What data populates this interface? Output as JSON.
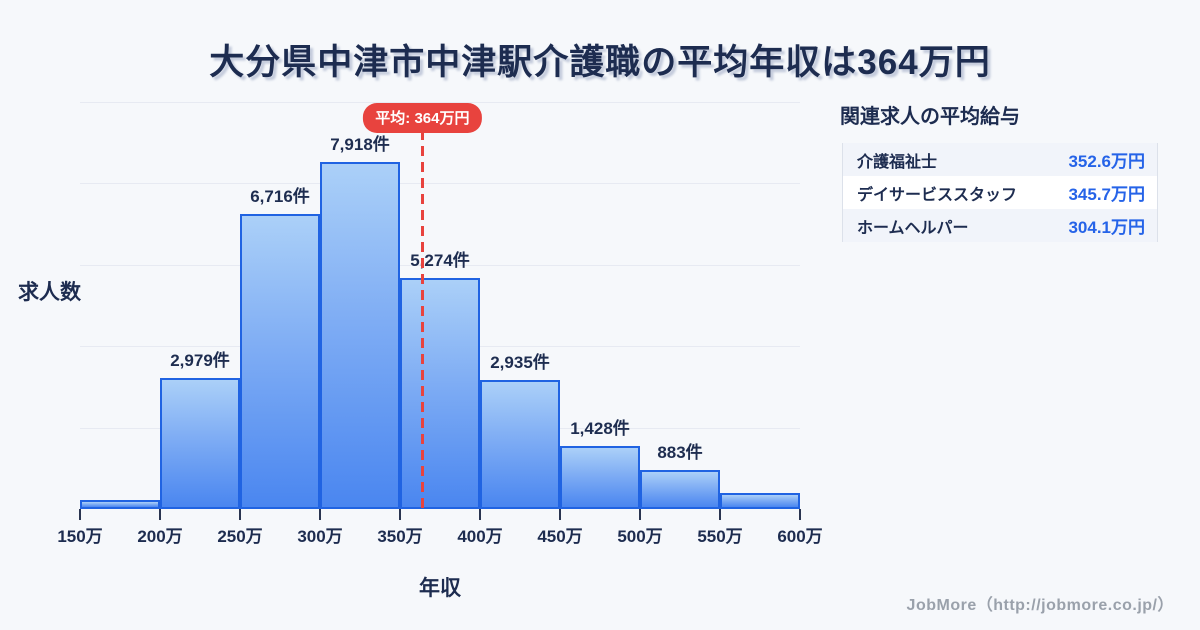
{
  "title": "大分県中津市中津駅介護職の平均年収は364万円",
  "chart_data": {
    "type": "bar",
    "title": "大分県中津市中津駅介護職の平均年収は364万円",
    "xlabel": "年収",
    "ylabel": "求人数",
    "x_tick_labels": [
      "150万",
      "200万",
      "250万",
      "300万",
      "350万",
      "400万",
      "450万",
      "500万",
      "550万",
      "600万"
    ],
    "x_range_man_yen": [
      150,
      600
    ],
    "bin_width_man_yen": 50,
    "values": [
      200,
      2979,
      6716,
      7918,
      5274,
      2935,
      1428,
      883,
      370
    ],
    "bar_labels": [
      "",
      "2,979件",
      "6,716件",
      "7,918件",
      "5,274件",
      "2,935件",
      "1,428件",
      "883件",
      ""
    ],
    "ylim": [
      0,
      9280
    ],
    "grid": true,
    "gridline_count": 5,
    "average": {
      "value_man_yen": 364,
      "badge_label": "平均: 364万円"
    },
    "legend_position": "none"
  },
  "related_jobs": {
    "heading": "関連求人の平均給与",
    "rows": [
      {
        "name": "介護福祉士",
        "value": "352.6万円"
      },
      {
        "name": "デイサービススタッフ",
        "value": "345.7万円"
      },
      {
        "name": "ホームヘルパー",
        "value": "304.1万円"
      }
    ]
  },
  "footer": {
    "credit": "JobMore（http://jobmore.co.jp/）"
  },
  "colors": {
    "background": "#f6f8fb",
    "title_text": "#1d2c50",
    "bar_fill_top": "#abd0f8",
    "bar_fill_bottom": "#4a86f0",
    "bar_border": "#2063e2",
    "gridline": "#e7eaf2",
    "average_red": "#e8433e",
    "value_blue": "#2563e8",
    "footer_gray": "#9aa1ab"
  }
}
